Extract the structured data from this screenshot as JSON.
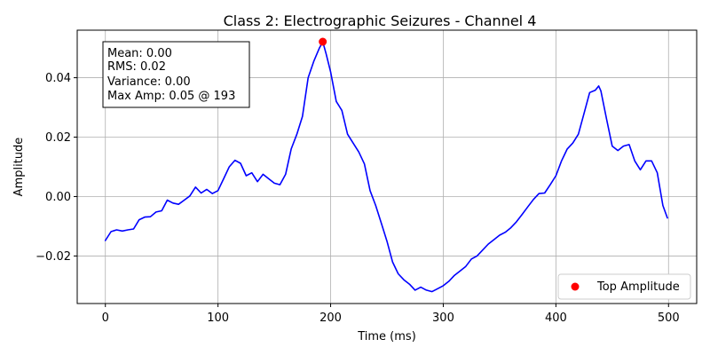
{
  "chart_data": {
    "type": "line",
    "title": "Class 2: Electrographic Seizures - Channel 4",
    "xlabel": "Time (ms)",
    "ylabel": "Amplitude",
    "xlim": [
      -25,
      525
    ],
    "ylim": [
      -0.036,
      0.056
    ],
    "xticks": [
      0,
      100,
      200,
      300,
      400,
      500
    ],
    "xtick_labels": [
      "0",
      "100",
      "200",
      "300",
      "400",
      "500"
    ],
    "yticks": [
      -0.02,
      0.0,
      0.02,
      0.04
    ],
    "ytick_labels": [
      "−0.02",
      "0.00",
      "0.02",
      "0.04"
    ],
    "grid": true,
    "series": [
      {
        "color": "#0000ff",
        "x": [
          0,
          5,
          10,
          15,
          20,
          25,
          30,
          35,
          40,
          45,
          50,
          55,
          60,
          65,
          70,
          75,
          80,
          85,
          90,
          95,
          100,
          105,
          110,
          115,
          120,
          125,
          130,
          135,
          140,
          145,
          150,
          155,
          160,
          165,
          170,
          175,
          180,
          185,
          190,
          193,
          196,
          200,
          205,
          210,
          215,
          220,
          225,
          230,
          235,
          240,
          245,
          250,
          255,
          260,
          265,
          270,
          275,
          280,
          285,
          290,
          295,
          300,
          305,
          310,
          315,
          320,
          325,
          330,
          335,
          340,
          345,
          350,
          355,
          360,
          365,
          370,
          375,
          380,
          385,
          390,
          395,
          400,
          405,
          410,
          415,
          420,
          425,
          430,
          435,
          438,
          440,
          445,
          450,
          455,
          460,
          465,
          470,
          475,
          480,
          485,
          490,
          495,
          499
        ],
        "y": [
          -0.0148,
          -0.0118,
          -0.0112,
          -0.0116,
          -0.0112,
          -0.0109,
          -0.0078,
          -0.0069,
          -0.0068,
          -0.0052,
          -0.0048,
          -0.0012,
          -0.0022,
          -0.0026,
          -0.0012,
          0.0002,
          0.0032,
          0.0012,
          0.0024,
          0.001,
          0.002,
          0.006,
          0.01,
          0.0122,
          0.0112,
          0.007,
          0.008,
          0.005,
          0.0075,
          0.006,
          0.0045,
          0.004,
          0.0075,
          0.016,
          0.021,
          0.027,
          0.04,
          0.0455,
          0.05,
          0.0521,
          0.048,
          0.042,
          0.032,
          0.029,
          0.021,
          0.018,
          0.015,
          0.011,
          0.002,
          -0.003,
          -0.009,
          -0.015,
          -0.022,
          -0.026,
          -0.028,
          -0.0295,
          -0.0315,
          -0.0305,
          -0.0315,
          -0.032,
          -0.031,
          -0.03,
          -0.0285,
          -0.0265,
          -0.025,
          -0.0235,
          -0.021,
          -0.02,
          -0.018,
          -0.016,
          -0.0145,
          -0.013,
          -0.012,
          -0.0105,
          -0.0085,
          -0.006,
          -0.0035,
          -0.001,
          0.001,
          0.0012,
          0.004,
          0.007,
          0.012,
          0.016,
          0.018,
          0.021,
          0.028,
          0.035,
          0.0358,
          0.0372,
          0.0355,
          0.026,
          0.017,
          0.0155,
          0.017,
          0.0175,
          0.012,
          0.009,
          0.012,
          0.012,
          0.008,
          -0.003,
          -0.0072
        ]
      }
    ],
    "highlight": {
      "label": "Top Amplitude",
      "color": "#ff0000",
      "x": 193,
      "y": 0.0521
    },
    "legend": {
      "placement": "bottom-right",
      "entries": [
        "Top Amplitude"
      ]
    },
    "stats_box": {
      "placement": "top-left",
      "lines": [
        "Mean: 0.00",
        "RMS: 0.02",
        "Variance: 0.00",
        "Max Amp: 0.05 @ 193"
      ]
    }
  }
}
